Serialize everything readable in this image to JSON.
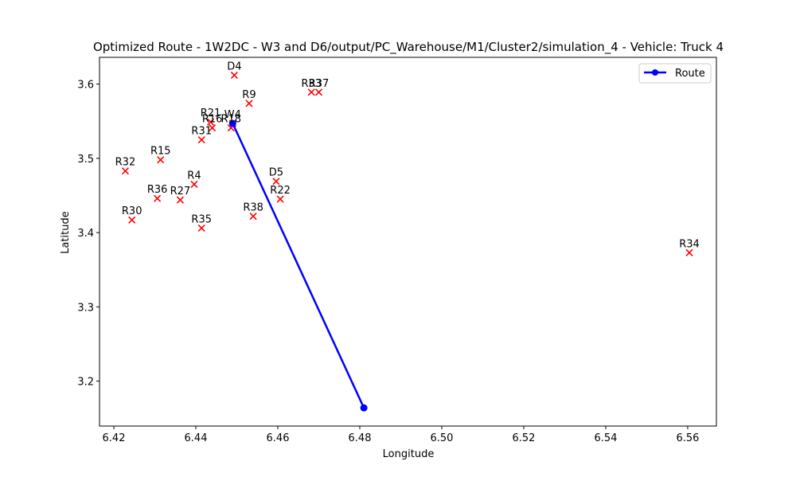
{
  "chart_data": {
    "type": "scatter",
    "title": "Optimized Route - 1W2DC - W3 and D6/output/PC_Warehouse/M1/Cluster2/simulation_4 - Vehicle: Truck 4",
    "xlabel": "Longitude",
    "ylabel": "Latitude",
    "xlim": [
      6.4165,
      6.567
    ],
    "ylim": [
      3.1395,
      3.636
    ],
    "xticks": [
      6.42,
      6.44,
      6.46,
      6.48,
      6.5,
      6.52,
      6.54,
      6.56
    ],
    "yticks": [
      3.2,
      3.3,
      3.4,
      3.5,
      3.6
    ],
    "xtick_labels": [
      "6.42",
      "6.44",
      "6.46",
      "6.48",
      "6.50",
      "6.52",
      "6.54",
      "6.56"
    ],
    "ytick_labels": [
      "3.2",
      "3.3",
      "3.4",
      "3.5",
      "3.6"
    ],
    "grid": false,
    "legend": {
      "position": "top-right",
      "entries": [
        "Route"
      ]
    },
    "route": {
      "name": "Route",
      "color": "#0000ff",
      "points": [
        {
          "x": 6.449,
          "y": 3.547
        },
        {
          "x": 6.481,
          "y": 3.164
        }
      ]
    },
    "locations": {
      "marker_color": "#ff0000",
      "points": [
        {
          "label": "D4",
          "x": 6.4494,
          "y": 3.612
        },
        {
          "label": "R33",
          "x": 6.4682,
          "y": 3.589
        },
        {
          "label": "R37",
          "x": 6.47,
          "y": 3.589
        },
        {
          "label": "R9",
          "x": 6.453,
          "y": 3.574
        },
        {
          "label": "R21",
          "x": 6.4436,
          "y": 3.549
        },
        {
          "label": "W4",
          "x": 6.449,
          "y": 3.547
        },
        {
          "label": "R16",
          "x": 6.444,
          "y": 3.541
        },
        {
          "label": "R18",
          "x": 6.4486,
          "y": 3.541
        },
        {
          "label": "R31",
          "x": 6.4414,
          "y": 3.525
        },
        {
          "label": "R15",
          "x": 6.4314,
          "y": 3.498
        },
        {
          "label": "R32",
          "x": 6.4228,
          "y": 3.483
        },
        {
          "label": "D5",
          "x": 6.4596,
          "y": 3.469
        },
        {
          "label": "R4",
          "x": 6.4396,
          "y": 3.465
        },
        {
          "label": "R36",
          "x": 6.4306,
          "y": 3.446
        },
        {
          "label": "R22",
          "x": 6.4606,
          "y": 3.445
        },
        {
          "label": "R27",
          "x": 6.4362,
          "y": 3.444
        },
        {
          "label": "R38",
          "x": 6.454,
          "y": 3.422
        },
        {
          "label": "R30",
          "x": 6.4244,
          "y": 3.417
        },
        {
          "label": "R35",
          "x": 6.4414,
          "y": 3.406
        },
        {
          "label": "R34",
          "x": 6.5604,
          "y": 3.373
        }
      ]
    }
  }
}
